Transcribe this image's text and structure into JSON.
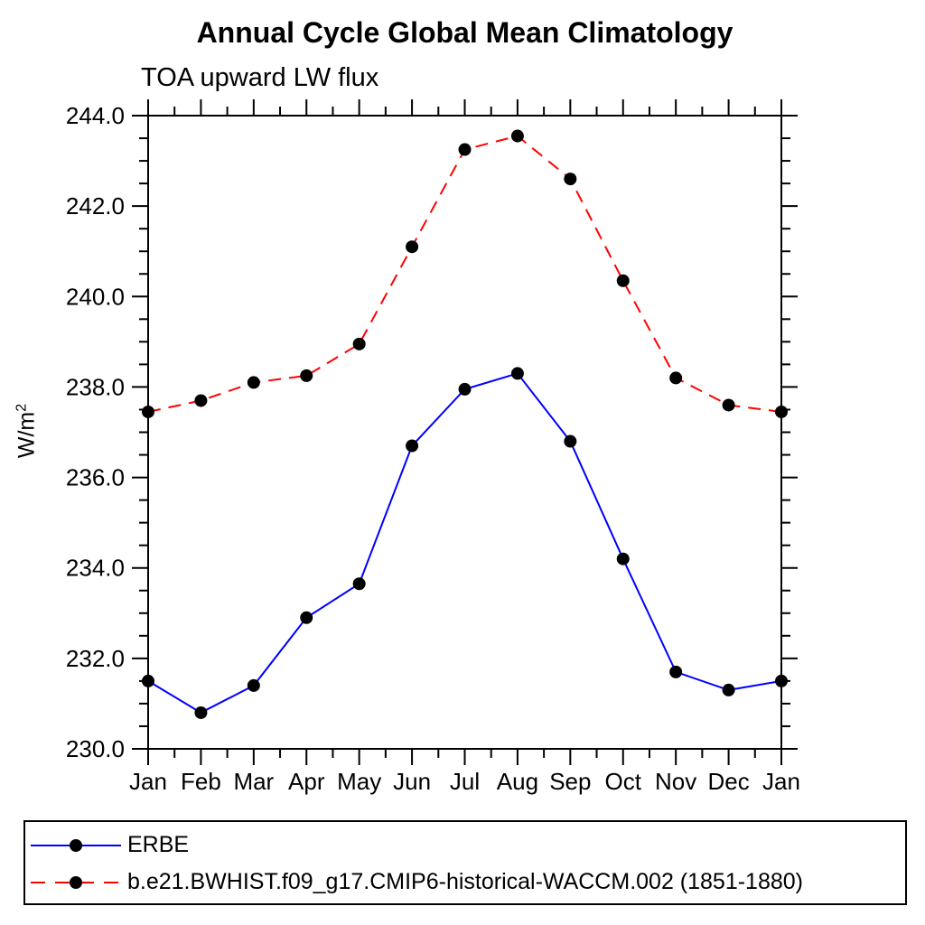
{
  "chart_data": {
    "type": "line",
    "title": "Annual Cycle Global Mean Climatology",
    "subtitle": "TOA upward LW flux",
    "ylabel": "W/m²",
    "ylabel_base": "W/m",
    "ylabel_exp": "2",
    "categories": [
      "Jan",
      "Feb",
      "Mar",
      "Apr",
      "May",
      "Jun",
      "Jul",
      "Aug",
      "Sep",
      "Oct",
      "Nov",
      "Dec",
      "Jan"
    ],
    "ylim": [
      230.0,
      244.0
    ],
    "ytick_major_step": 2.0,
    "ytick_minor_step": 0.5,
    "ytick_labels": [
      "230.0",
      "232.0",
      "234.0",
      "236.0",
      "238.0",
      "240.0",
      "242.0",
      "244.0"
    ],
    "grid": false,
    "legend_position": "bottom",
    "marker": "filled-circle",
    "marker_color": "#000000",
    "series": [
      {
        "name": "ERBE",
        "color": "#0000ff",
        "line_style": "solid",
        "values": [
          231.5,
          230.8,
          231.4,
          232.9,
          233.65,
          236.7,
          237.95,
          238.3,
          236.8,
          234.2,
          231.7,
          231.3,
          231.5
        ]
      },
      {
        "name": "b.e21.BWHIST.f09_g17.CMIP6-historical-WACCM.002 (1851-1880)",
        "color": "#ff0000",
        "line_style": "dashed",
        "values": [
          237.45,
          237.7,
          238.1,
          238.25,
          238.95,
          241.1,
          243.25,
          243.55,
          242.6,
          240.35,
          238.2,
          237.6,
          237.45
        ]
      }
    ]
  },
  "colors": {
    "background": "#ffffff",
    "axis": "#000000",
    "text": "#000000",
    "erbe_line": "#0000ff",
    "model_line": "#ff0000",
    "marker": "#000000"
  }
}
